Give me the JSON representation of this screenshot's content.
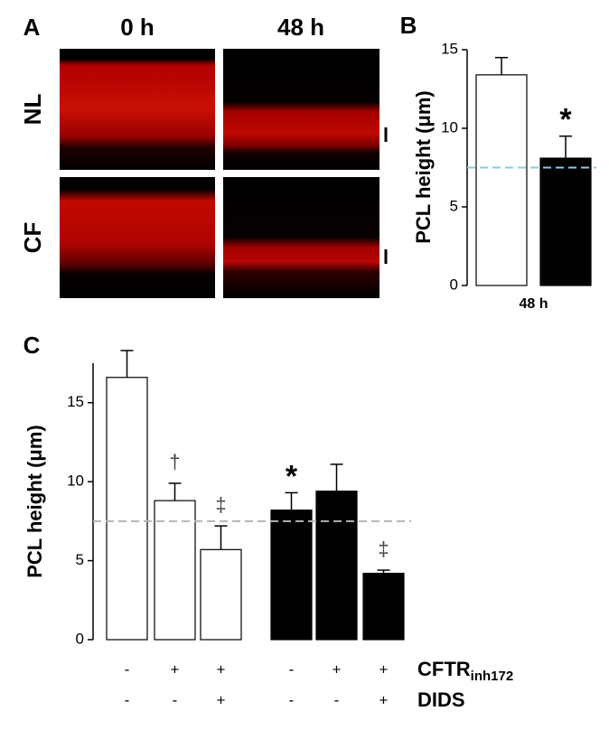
{
  "panel_a": {
    "label": "A",
    "columns": [
      "0 h",
      "48 h"
    ],
    "rows": [
      "NL",
      "CF"
    ]
  },
  "chart_data": [
    {
      "type": "bar",
      "panel": "B",
      "y_label": "PCL height (μm)",
      "x_label": "48 h",
      "values": [
        13.4,
        8.1
      ],
      "errors": [
        1.1,
        1.4
      ],
      "colors": [
        "#ffffff",
        "#000000"
      ],
      "annotations": [
        null,
        "*"
      ],
      "reference_line": 7.5,
      "ylim": [
        0,
        15
      ],
      "yticks": [
        0,
        5,
        10,
        15
      ]
    },
    {
      "type": "bar",
      "panel": "C",
      "y_label": "PCL height (μm)",
      "values": [
        16.6,
        8.8,
        5.7,
        8.2,
        9.4,
        4.2
      ],
      "errors": [
        1.7,
        1.1,
        1.5,
        1.1,
        1.7,
        0.2
      ],
      "colors": [
        "#ffffff",
        "#ffffff",
        "#ffffff",
        "#000000",
        "#000000",
        "#000000"
      ],
      "annotations": [
        null,
        "†",
        "‡",
        "*",
        null,
        "‡"
      ],
      "reference_line": 7.5,
      "ylim": [
        0,
        17.5
      ],
      "yticks": [
        0,
        5,
        10,
        15
      ],
      "rows": [
        {
          "label": "CFTR",
          "subscript": "inh172",
          "marks": [
            "-",
            "+",
            "+",
            "-",
            "+",
            "+"
          ]
        },
        {
          "label": "DIDS",
          "marks": [
            "-",
            "-",
            "+",
            "-",
            "-",
            "+"
          ]
        }
      ]
    }
  ]
}
